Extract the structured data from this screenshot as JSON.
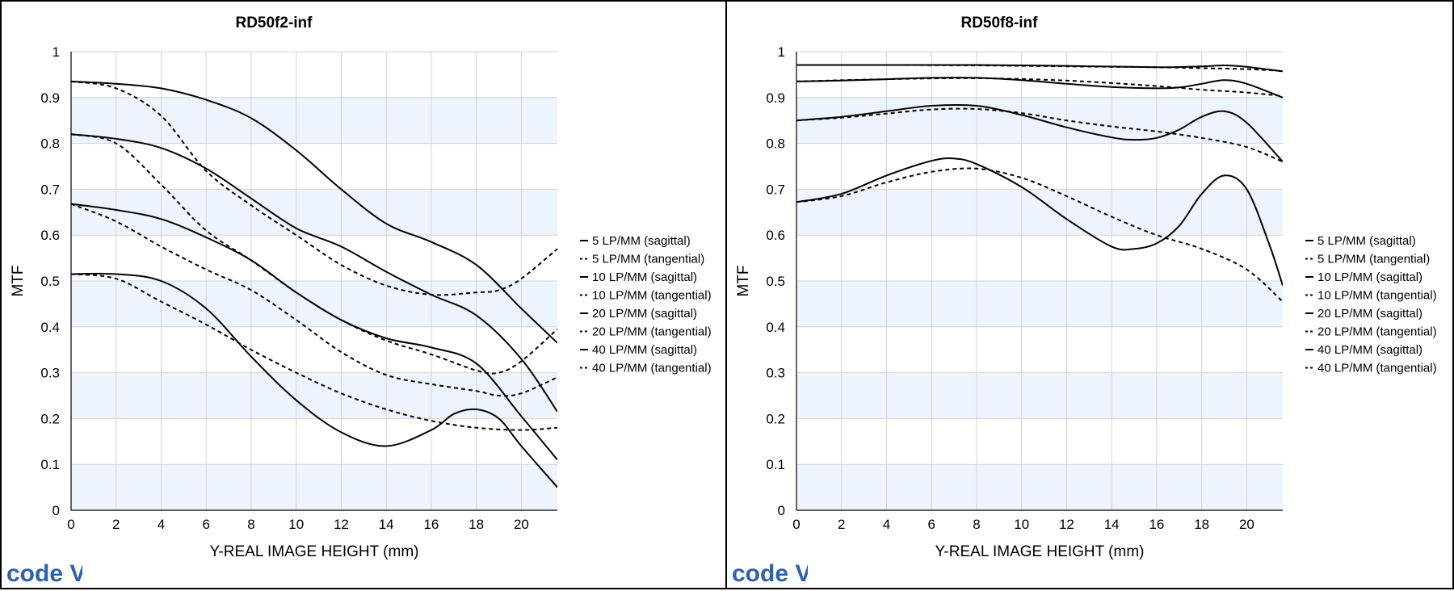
{
  "logo_text": "code V",
  "colors": {
    "band": "#eef4fc",
    "grid": "#d0d4d8",
    "line": "#000000",
    "logo": "#2f62a8"
  },
  "chart_data": [
    {
      "type": "line",
      "title": "RD50f2-inf",
      "xlabel": "Y-REAL IMAGE HEIGHT (mm)",
      "ylabel": "MTF",
      "xlim": [
        0,
        21.6
      ],
      "ylim": [
        0,
        1
      ],
      "xticks": [
        0,
        2,
        4,
        6,
        8,
        10,
        12,
        14,
        16,
        18,
        20
      ],
      "yticks": [
        0,
        0.1,
        0.2,
        0.3,
        0.4,
        0.5,
        0.6,
        0.7,
        0.8,
        0.9,
        1
      ],
      "grid": true,
      "legend_position": "right",
      "series": [
        {
          "name": "5 LP/MM (sagittal)",
          "style": "solid",
          "x": [
            0,
            2,
            4,
            6,
            8,
            10,
            12,
            14,
            16,
            18,
            20,
            21.6
          ],
          "y": [
            0.935,
            0.93,
            0.92,
            0.895,
            0.855,
            0.785,
            0.7,
            0.625,
            0.585,
            0.535,
            0.44,
            0.365
          ]
        },
        {
          "name": "5 LP/MM (tangential)",
          "style": "dashed",
          "x": [
            0,
            2,
            4,
            6,
            8,
            10,
            12,
            14,
            16,
            18,
            19,
            20,
            21.6
          ],
          "y": [
            0.935,
            0.92,
            0.86,
            0.74,
            0.665,
            0.6,
            0.535,
            0.49,
            0.47,
            0.475,
            0.48,
            0.505,
            0.57
          ]
        },
        {
          "name": "10 LP/MM (sagittal)",
          "style": "solid",
          "x": [
            0,
            2,
            4,
            6,
            8,
            10,
            12,
            14,
            16,
            18,
            20,
            21.6
          ],
          "y": [
            0.82,
            0.81,
            0.79,
            0.745,
            0.68,
            0.615,
            0.575,
            0.52,
            0.47,
            0.425,
            0.33,
            0.215
          ]
        },
        {
          "name": "10 LP/MM (tangential)",
          "style": "dashed",
          "x": [
            0,
            2,
            4,
            6,
            8,
            10,
            12,
            14,
            16,
            18,
            19,
            20,
            21.6
          ],
          "y": [
            0.82,
            0.8,
            0.71,
            0.61,
            0.545,
            0.475,
            0.415,
            0.37,
            0.34,
            0.305,
            0.3,
            0.325,
            0.395
          ]
        },
        {
          "name": "20 LP/MM (sagittal)",
          "style": "solid",
          "x": [
            0,
            2,
            4,
            6,
            8,
            10,
            12,
            14,
            16,
            18,
            20,
            21.6
          ],
          "y": [
            0.668,
            0.655,
            0.635,
            0.595,
            0.545,
            0.475,
            0.415,
            0.375,
            0.355,
            0.32,
            0.205,
            0.11
          ]
        },
        {
          "name": "20 LP/MM (tangential)",
          "style": "dashed",
          "x": [
            0,
            2,
            4,
            6,
            8,
            10,
            12,
            14,
            16,
            18,
            19,
            20,
            21.6
          ],
          "y": [
            0.668,
            0.63,
            0.575,
            0.525,
            0.48,
            0.415,
            0.345,
            0.295,
            0.275,
            0.26,
            0.25,
            0.255,
            0.29
          ]
        },
        {
          "name": "40 LP/MM (sagittal)",
          "style": "solid",
          "x": [
            0,
            2,
            4,
            6,
            8,
            10,
            12,
            14,
            16,
            17,
            18,
            19,
            20,
            21.6
          ],
          "y": [
            0.515,
            0.515,
            0.5,
            0.44,
            0.335,
            0.24,
            0.17,
            0.14,
            0.175,
            0.21,
            0.22,
            0.2,
            0.14,
            0.05
          ]
        },
        {
          "name": "40 LP/MM (tangential)",
          "style": "dashed",
          "x": [
            0,
            2,
            4,
            6,
            8,
            10,
            12,
            14,
            16,
            18,
            20,
            21.6
          ],
          "y": [
            0.515,
            0.505,
            0.455,
            0.405,
            0.35,
            0.3,
            0.255,
            0.22,
            0.195,
            0.18,
            0.175,
            0.18
          ]
        }
      ]
    },
    {
      "type": "line",
      "title": "RD50f8-inf",
      "xlabel": "Y-REAL IMAGE HEIGHT (mm)",
      "ylabel": "MTF",
      "xlim": [
        0,
        21.6
      ],
      "ylim": [
        0,
        1
      ],
      "xticks": [
        0,
        2,
        4,
        6,
        8,
        10,
        12,
        14,
        16,
        18,
        20
      ],
      "yticks": [
        0,
        0.1,
        0.2,
        0.3,
        0.4,
        0.5,
        0.6,
        0.7,
        0.8,
        0.9,
        1
      ],
      "grid": true,
      "legend_position": "right",
      "series": [
        {
          "name": "5 LP/MM (sagittal)",
          "style": "solid",
          "x": [
            0,
            4,
            8,
            12,
            16,
            18,
            19,
            20,
            21.6
          ],
          "y": [
            0.971,
            0.971,
            0.971,
            0.969,
            0.966,
            0.968,
            0.97,
            0.967,
            0.957
          ]
        },
        {
          "name": "5 LP/MM (tangential)",
          "style": "dashed",
          "x": [
            0,
            4,
            8,
            12,
            16,
            18,
            20,
            21.6
          ],
          "y": [
            0.971,
            0.971,
            0.97,
            0.968,
            0.966,
            0.964,
            0.962,
            0.958
          ]
        },
        {
          "name": "10 LP/MM (sagittal)",
          "style": "solid",
          "x": [
            0,
            2,
            4,
            6,
            8,
            10,
            12,
            14,
            16,
            17,
            18,
            19,
            20,
            21.6
          ],
          "y": [
            0.935,
            0.937,
            0.94,
            0.943,
            0.943,
            0.938,
            0.93,
            0.923,
            0.92,
            0.922,
            0.93,
            0.938,
            0.93,
            0.9
          ]
        },
        {
          "name": "10 LP/MM (tangential)",
          "style": "dashed",
          "x": [
            0,
            4,
            8,
            12,
            16,
            18,
            20,
            21.6
          ],
          "y": [
            0.935,
            0.94,
            0.942,
            0.937,
            0.925,
            0.917,
            0.911,
            0.903
          ]
        },
        {
          "name": "20 LP/MM (sagittal)",
          "style": "solid",
          "x": [
            0,
            2,
            4,
            6,
            8,
            10,
            12,
            14,
            15,
            16,
            17,
            18,
            19,
            20,
            21.6
          ],
          "y": [
            0.85,
            0.858,
            0.87,
            0.882,
            0.882,
            0.862,
            0.835,
            0.813,
            0.808,
            0.812,
            0.83,
            0.858,
            0.87,
            0.845,
            0.76
          ]
        },
        {
          "name": "20 LP/MM (tangential)",
          "style": "dashed",
          "x": [
            0,
            2,
            4,
            6,
            8,
            10,
            12,
            14,
            16,
            18,
            20,
            21.6
          ],
          "y": [
            0.85,
            0.856,
            0.865,
            0.874,
            0.875,
            0.866,
            0.85,
            0.837,
            0.826,
            0.812,
            0.792,
            0.76
          ]
        },
        {
          "name": "40 LP/MM (sagittal)",
          "style": "solid",
          "x": [
            0,
            2,
            4,
            6,
            7,
            8,
            10,
            12,
            14,
            15,
            16,
            17,
            18,
            19,
            20,
            21,
            21.6
          ],
          "y": [
            0.672,
            0.69,
            0.73,
            0.762,
            0.767,
            0.755,
            0.705,
            0.635,
            0.575,
            0.57,
            0.582,
            0.62,
            0.69,
            0.73,
            0.7,
            0.58,
            0.49
          ]
        },
        {
          "name": "40 LP/MM (tangential)",
          "style": "dashed",
          "x": [
            0,
            2,
            4,
            6,
            8,
            10,
            12,
            14,
            16,
            18,
            20,
            21.6
          ],
          "y": [
            0.672,
            0.685,
            0.715,
            0.738,
            0.745,
            0.725,
            0.685,
            0.64,
            0.6,
            0.57,
            0.525,
            0.455
          ]
        }
      ]
    }
  ]
}
